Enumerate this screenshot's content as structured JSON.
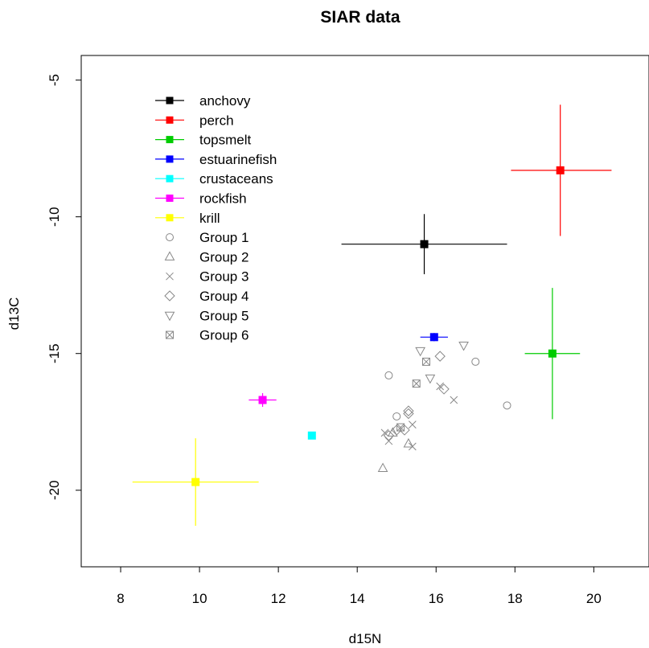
{
  "chart_data": {
    "type": "scatter",
    "title": "SIAR data",
    "xlabel": "d15N",
    "ylabel": "d13C",
    "xlim": [
      7,
      21.4
    ],
    "ylim": [
      -22.8,
      -4.1
    ],
    "xticks": [
      8,
      10,
      12,
      14,
      16,
      18,
      20
    ],
    "yticks": [
      -5,
      -10,
      -15,
      -20
    ],
    "xtick_labels": [
      "8",
      "10",
      "12",
      "14",
      "16",
      "18",
      "20"
    ],
    "ytick_labels": [
      "-5",
      "-10",
      "-15",
      "-20"
    ],
    "grid": false,
    "legend_position": "top-left",
    "sources": [
      {
        "name": "anchovy",
        "color": "#000000",
        "x": 15.7,
        "y": -11.0,
        "x_lo": 13.6,
        "x_hi": 17.8,
        "y_lo": -12.1,
        "y_hi": -9.9
      },
      {
        "name": "perch",
        "color": "#ff0000",
        "x": 19.15,
        "y": -8.3,
        "x_lo": 17.9,
        "x_hi": 20.45,
        "y_lo": -10.7,
        "y_hi": -5.9
      },
      {
        "name": "topsmelt",
        "color": "#00cc00",
        "x": 18.95,
        "y": -15.0,
        "x_lo": 18.25,
        "x_hi": 19.65,
        "y_lo": -17.4,
        "y_hi": -12.6
      },
      {
        "name": "estuarinefish",
        "color": "#0000ff",
        "x": 15.95,
        "y": -14.4,
        "x_lo": 15.6,
        "x_hi": 16.3,
        "y_lo": -14.55,
        "y_hi": -14.25
      },
      {
        "name": "crustaceans",
        "color": "#00ffff",
        "x": 12.85,
        "y": -18.0,
        "x_lo": 12.85,
        "x_hi": 12.85,
        "y_lo": -18.0,
        "y_hi": -18.0
      },
      {
        "name": "rockfish",
        "color": "#ff00ff",
        "x": 11.6,
        "y": -16.7,
        "x_lo": 11.25,
        "x_hi": 11.95,
        "y_lo": -16.95,
        "y_hi": -16.45
      },
      {
        "name": "krill",
        "color": "#ffff00",
        "x": 9.9,
        "y": -19.7,
        "x_lo": 8.3,
        "x_hi": 11.5,
        "y_lo": -21.3,
        "y_hi": -18.1
      }
    ],
    "groups": [
      {
        "name": "Group 1",
        "symbol": "circle",
        "points": [
          [
            14.8,
            -15.8
          ],
          [
            17.0,
            -15.3
          ],
          [
            17.8,
            -16.9
          ],
          [
            15.0,
            -17.3
          ]
        ]
      },
      {
        "name": "Group 2",
        "symbol": "triangle-up",
        "points": [
          [
            14.65,
            -19.2
          ],
          [
            14.9,
            -17.9
          ],
          [
            15.3,
            -18.3
          ]
        ]
      },
      {
        "name": "Group 3",
        "symbol": "cross",
        "points": [
          [
            14.7,
            -17.9
          ],
          [
            14.8,
            -18.2
          ],
          [
            15.4,
            -18.4
          ],
          [
            15.4,
            -17.6
          ],
          [
            16.1,
            -16.2
          ],
          [
            16.45,
            -16.7
          ]
        ]
      },
      {
        "name": "Group 4",
        "symbol": "diamond",
        "points": [
          [
            14.8,
            -18.0
          ],
          [
            15.0,
            -17.8
          ],
          [
            15.2,
            -17.8
          ],
          [
            15.3,
            -17.2
          ],
          [
            15.3,
            -17.1
          ],
          [
            16.1,
            -15.1
          ],
          [
            16.2,
            -16.3
          ]
        ]
      },
      {
        "name": "Group 5",
        "symbol": "triangle-down",
        "points": [
          [
            15.6,
            -14.9
          ],
          [
            15.85,
            -15.9
          ],
          [
            16.7,
            -14.7
          ]
        ]
      },
      {
        "name": "Group 6",
        "symbol": "square-cross",
        "points": [
          [
            15.1,
            -17.7
          ],
          [
            15.5,
            -16.1
          ],
          [
            15.75,
            -15.3
          ]
        ]
      }
    ]
  }
}
